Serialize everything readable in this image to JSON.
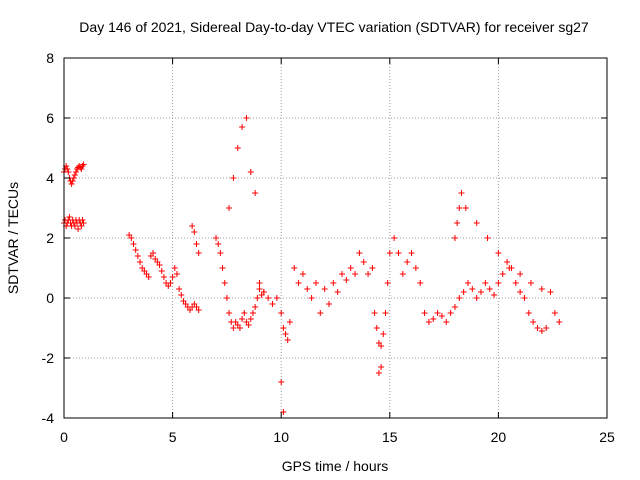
{
  "chart_data": {
    "type": "scatter",
    "title": "Day 146 of 2021, Sidereal Day-to-day VTEC variation (SDTVAR) for receiver sg27",
    "xlabel": "GPS time / hours",
    "ylabel": "SDTVAR / TECUs",
    "xlim": [
      0,
      25
    ],
    "ylim": [
      -4,
      8
    ],
    "xticks": [
      0,
      5,
      10,
      15,
      20,
      25
    ],
    "yticks": [
      -4,
      -2,
      0,
      2,
      4,
      6,
      8
    ],
    "grid": true,
    "marker": "+",
    "color": "#ff0000",
    "series": [
      {
        "name": "SDTVAR",
        "x": [
          0.0,
          0.05,
          0.1,
          0.15,
          0.2,
          0.25,
          0.3,
          0.35,
          0.4,
          0.45,
          0.5,
          0.55,
          0.6,
          0.65,
          0.7,
          0.75,
          0.8,
          0.85,
          0.9,
          0.0,
          0.05,
          0.1,
          0.15,
          0.2,
          0.25,
          0.3,
          0.35,
          0.4,
          0.45,
          0.5,
          0.55,
          0.6,
          0.65,
          0.7,
          0.75,
          0.8,
          0.85,
          0.9,
          3.0,
          3.1,
          3.2,
          3.3,
          3.4,
          3.5,
          3.6,
          3.7,
          3.8,
          3.9,
          4.0,
          4.1,
          4.2,
          4.3,
          4.4,
          4.5,
          4.6,
          4.7,
          4.8,
          4.9,
          5.0,
          5.1,
          5.2,
          5.3,
          5.4,
          5.5,
          5.6,
          5.7,
          5.8,
          5.9,
          6.0,
          6.1,
          6.2,
          5.9,
          6.0,
          6.1,
          6.2,
          7.0,
          7.1,
          7.2,
          7.3,
          7.4,
          7.5,
          7.6,
          7.7,
          7.8,
          7.9,
          8.0,
          8.1,
          8.2,
          8.3,
          8.4,
          8.5,
          8.6,
          8.7,
          8.8,
          8.9,
          9.0,
          9.1,
          9.2,
          7.6,
          7.8,
          8.0,
          8.2,
          8.4,
          8.6,
          8.8,
          9.0,
          9.2,
          9.4,
          9.6,
          9.8,
          10.0,
          10.1,
          10.2,
          10.3,
          10.4,
          10.6,
          10.8,
          11.0,
          11.2,
          11.4,
          11.6,
          11.8,
          12.0,
          12.2,
          12.4,
          12.6,
          12.8,
          13.0,
          13.2,
          13.4,
          13.6,
          13.8,
          14.0,
          14.2,
          14.3,
          14.4,
          14.5,
          14.6,
          14.7,
          14.8,
          14.9,
          15.0,
          15.2,
          15.4,
          15.6,
          15.8,
          16.0,
          16.2,
          16.4,
          16.6,
          16.8,
          17.0,
          17.2,
          17.4,
          17.6,
          17.8,
          18.0,
          18.2,
          18.4,
          18.6,
          18.8,
          19.0,
          19.2,
          19.4,
          19.6,
          19.8,
          20.0,
          20.2,
          20.4,
          20.6,
          20.8,
          21.0,
          21.2,
          21.4,
          21.6,
          21.8,
          22.0,
          22.2,
          22.4,
          22.6,
          22.8,
          18.0,
          18.1,
          18.2,
          18.3,
          18.5,
          19.0,
          19.5,
          20.0,
          20.5,
          21.0,
          21.5,
          22.0,
          10.0,
          10.1,
          14.5,
          14.6
        ],
        "y": [
          4.2,
          4.3,
          4.4,
          4.3,
          4.2,
          4.0,
          3.9,
          3.8,
          3.9,
          4.0,
          4.1,
          4.2,
          4.3,
          4.35,
          4.4,
          4.35,
          4.3,
          4.4,
          4.45,
          2.5,
          2.6,
          2.4,
          2.5,
          2.6,
          2.7,
          2.5,
          2.4,
          2.6,
          2.5,
          2.4,
          2.6,
          2.5,
          2.3,
          2.6,
          2.5,
          2.4,
          2.6,
          2.5,
          2.1,
          2.0,
          1.8,
          1.6,
          1.4,
          1.2,
          1.0,
          0.9,
          0.8,
          0.7,
          1.4,
          1.5,
          1.3,
          1.2,
          1.1,
          0.9,
          0.7,
          0.5,
          0.4,
          0.5,
          0.7,
          1.0,
          0.8,
          0.3,
          0.1,
          -0.1,
          -0.2,
          -0.3,
          -0.4,
          -0.3,
          -0.2,
          -0.3,
          -0.4,
          2.4,
          2.2,
          1.8,
          1.5,
          2.0,
          1.8,
          1.5,
          1.0,
          0.5,
          0.0,
          -0.5,
          -0.8,
          -1.0,
          -0.8,
          -0.9,
          -1.0,
          -0.7,
          -0.5,
          -0.8,
          -0.9,
          -0.7,
          -0.5,
          -0.3,
          0.0,
          0.3,
          0.1,
          0.2,
          3.0,
          4.0,
          5.0,
          5.7,
          6.0,
          4.2,
          3.5,
          0.5,
          0.2,
          0.0,
          -0.2,
          0.0,
          -0.5,
          -1.0,
          -1.2,
          -1.4,
          -0.8,
          1.0,
          0.5,
          0.8,
          0.3,
          0.0,
          0.5,
          -0.5,
          0.3,
          -0.2,
          0.5,
          0.2,
          0.8,
          0.6,
          1.0,
          0.8,
          1.5,
          1.2,
          0.8,
          1.0,
          -0.5,
          -1.0,
          -1.5,
          -1.6,
          -1.2,
          -0.5,
          0.5,
          1.5,
          2.0,
          1.5,
          0.8,
          1.2,
          1.5,
          1.0,
          0.5,
          -0.5,
          -0.8,
          -0.7,
          -0.5,
          -0.6,
          -0.8,
          -0.5,
          -0.3,
          0.0,
          0.2,
          0.5,
          0.3,
          0.0,
          0.2,
          0.5,
          0.3,
          0.1,
          0.5,
          0.8,
          1.2,
          1.0,
          0.5,
          0.2,
          0.0,
          -0.5,
          -0.8,
          -1.0,
          -1.1,
          -1.0,
          0.2,
          -0.5,
          -0.8,
          2.0,
          2.5,
          3.0,
          3.5,
          3.0,
          2.5,
          2.0,
          1.5,
          1.0,
          0.8,
          0.5,
          0.3,
          -2.8,
          -3.8,
          -2.5,
          -2.3
        ]
      }
    ]
  }
}
